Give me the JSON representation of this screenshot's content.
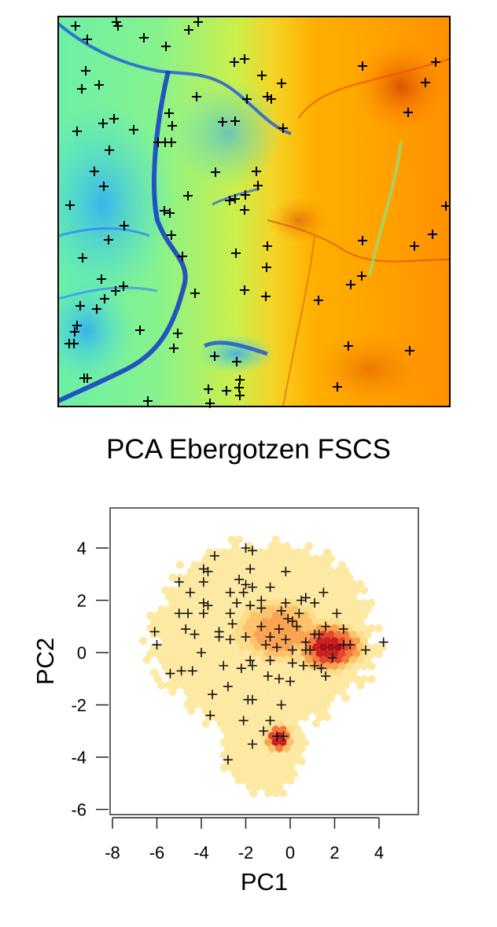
{
  "map_panel": {
    "description": "Raster terrain map with sample locations",
    "colorscale": [
      "#0a3fd6",
      "#1f8fff",
      "#36e0f0",
      "#8cf58a",
      "#c7f04a",
      "#f5d21e",
      "#ffb300",
      "#ff8a00",
      "#e85a00",
      "#c23200"
    ],
    "marker": "+"
  },
  "title": "PCA Ebergotzen FSCS",
  "chart_data": {
    "type": "scatter",
    "title": "PCA Ebergotzen FSCS",
    "xlabel": "PC1",
    "ylabel": "PC2",
    "xlim": [
      -8.1,
      5.8
    ],
    "ylim": [
      -6.2,
      5.5
    ],
    "xticks": [
      -8,
      -6,
      -4,
      -2,
      0,
      2,
      4
    ],
    "yticks": [
      -6,
      -4,
      -2,
      0,
      2,
      4
    ],
    "grid": false,
    "legend": null,
    "background": {
      "type": "hexbin_density",
      "colors": [
        "#fde9a2",
        "#fddc8a",
        "#fcc36a",
        "#f9a350",
        "#f47a3a",
        "#e4472a",
        "#c8201f",
        "#a50f15"
      ],
      "density_peaks": [
        {
          "x": 1.8,
          "y": 0.2
        },
        {
          "x": -0.5,
          "y": -3.3
        }
      ]
    },
    "series": [
      {
        "name": "samples",
        "marker": "+",
        "color": "#000000",
        "points": [
          [
            -2.0,
            4.0
          ],
          [
            -1.7,
            3.9
          ],
          [
            -3.4,
            3.7
          ],
          [
            -3.9,
            3.2
          ],
          [
            -3.7,
            3.1
          ],
          [
            -1.8,
            3.2
          ],
          [
            -0.2,
            3.1
          ],
          [
            -5.0,
            2.7
          ],
          [
            -3.9,
            2.7
          ],
          [
            -2.3,
            2.8
          ],
          [
            -2.0,
            2.6
          ],
          [
            -1.7,
            2.5
          ],
          [
            -0.9,
            2.5
          ],
          [
            -4.5,
            2.3
          ],
          [
            -2.7,
            2.3
          ],
          [
            -2.1,
            2.3
          ],
          [
            1.5,
            2.3
          ],
          [
            -3.9,
            1.9
          ],
          [
            -3.7,
            1.8
          ],
          [
            -2.4,
            1.9
          ],
          [
            -1.3,
            2.0
          ],
          [
            -0.2,
            1.9
          ],
          [
            0.5,
            2.0
          ],
          [
            0.7,
            2.1
          ],
          [
            1.1,
            1.9
          ],
          [
            -5.0,
            1.5
          ],
          [
            -4.6,
            1.5
          ],
          [
            -3.9,
            1.5
          ],
          [
            -2.7,
            1.5
          ],
          [
            -1.8,
            1.8
          ],
          [
            -1.3,
            1.7
          ],
          [
            -0.4,
            1.6
          ],
          [
            0.4,
            1.5
          ],
          [
            2.1,
            1.5
          ],
          [
            -0.1,
            1.3
          ],
          [
            0.1,
            1.2
          ],
          [
            0.3,
            1.0
          ],
          [
            -6.1,
            0.8
          ],
          [
            -4.7,
            0.9
          ],
          [
            -4.3,
            0.7
          ],
          [
            -3.2,
            0.8
          ],
          [
            -2.6,
            1.1
          ],
          [
            -1.3,
            1.0
          ],
          [
            -0.5,
            0.9
          ],
          [
            1.6,
            1.0
          ],
          [
            -3.2,
            0.6
          ],
          [
            -2.7,
            0.5
          ],
          [
            -2.0,
            0.6
          ],
          [
            -0.9,
            0.6
          ],
          [
            -0.2,
            0.5
          ],
          [
            1.1,
            0.7
          ],
          [
            1.3,
            0.7
          ],
          [
            2.4,
            0.9
          ],
          [
            -6.0,
            0.3
          ],
          [
            -1.1,
            0.3
          ],
          [
            -0.6,
            0.2
          ],
          [
            0.7,
            0.4
          ],
          [
            2.4,
            0.3
          ],
          [
            2.7,
            0.3
          ],
          [
            4.2,
            0.4
          ],
          [
            -4.0,
            0.0
          ],
          [
            0.1,
            0.1
          ],
          [
            0.7,
            0.1
          ],
          [
            0.9,
            0.1
          ],
          [
            1.9,
            -0.2
          ],
          [
            3.4,
            0.1
          ],
          [
            -5.4,
            -0.8
          ],
          [
            -4.9,
            -0.7
          ],
          [
            -4.4,
            -0.7
          ],
          [
            -3.0,
            -0.5
          ],
          [
            -2.2,
            -0.6
          ],
          [
            -1.8,
            -0.3
          ],
          [
            -1.7,
            -0.5
          ],
          [
            -0.9,
            -0.3
          ],
          [
            0.1,
            -0.4
          ],
          [
            0.6,
            -0.5
          ],
          [
            1.1,
            -0.5
          ],
          [
            1.4,
            -0.6
          ],
          [
            -1.0,
            -0.9
          ],
          [
            -0.5,
            -1.0
          ],
          [
            0.0,
            -1.1
          ],
          [
            1.6,
            -0.9
          ],
          [
            -2.8,
            -1.3
          ],
          [
            -3.5,
            -1.6
          ],
          [
            -1.9,
            -1.8
          ],
          [
            -1.7,
            -1.8
          ],
          [
            -0.4,
            -2.0
          ],
          [
            -3.6,
            -2.4
          ],
          [
            -2.1,
            -2.6
          ],
          [
            -0.9,
            -2.6
          ],
          [
            -1.2,
            -3.0
          ],
          [
            -0.6,
            -3.2
          ],
          [
            -0.3,
            -3.2
          ],
          [
            -1.7,
            -3.5
          ],
          [
            -2.8,
            -4.1
          ]
        ]
      }
    ]
  }
}
